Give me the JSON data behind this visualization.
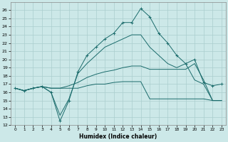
{
  "xlabel": "Humidex (Indice chaleur)",
  "bg_color": "#cce8e8",
  "grid_color": "#aacece",
  "line_color": "#1a6b6b",
  "xlim": [
    -0.5,
    23.5
  ],
  "ylim": [
    12,
    27
  ],
  "xticks": [
    0,
    1,
    2,
    3,
    4,
    5,
    6,
    7,
    8,
    9,
    10,
    11,
    12,
    13,
    14,
    15,
    16,
    17,
    18,
    19,
    20,
    21,
    22,
    23
  ],
  "yticks": [
    12,
    13,
    14,
    15,
    16,
    17,
    18,
    19,
    20,
    21,
    22,
    23,
    24,
    25,
    26
  ],
  "lines": [
    {
      "x": [
        0,
        1,
        2,
        3,
        4,
        5,
        6,
        7,
        8,
        9,
        10,
        11,
        12,
        13,
        14,
        15,
        16,
        17,
        18,
        19,
        20,
        21,
        22,
        23
      ],
      "y": [
        16.5,
        16.2,
        16.5,
        16.7,
        16.0,
        12.5,
        15.0,
        18.5,
        20.5,
        21.5,
        22.5,
        23.2,
        24.5,
        24.5,
        26.2,
        25.2,
        23.2,
        22.0,
        20.5,
        19.5,
        20.0,
        17.2,
        16.8,
        17.0
      ],
      "marker": "+"
    },
    {
      "x": [
        0,
        1,
        2,
        3,
        4,
        5,
        6,
        7,
        8,
        9,
        10,
        11,
        12,
        13,
        14,
        15,
        16,
        17,
        18,
        19,
        20,
        21,
        22,
        23
      ],
      "y": [
        16.5,
        16.2,
        16.5,
        16.7,
        16.5,
        16.5,
        16.8,
        17.2,
        17.8,
        18.2,
        18.5,
        18.7,
        19.0,
        19.2,
        19.2,
        18.8,
        18.8,
        18.8,
        18.8,
        18.8,
        19.5,
        17.5,
        15.0,
        15.0
      ],
      "marker": null
    },
    {
      "x": [
        0,
        1,
        2,
        3,
        4,
        5,
        6,
        7,
        8,
        9,
        10,
        11,
        12,
        13,
        14,
        15,
        16,
        17,
        18,
        19,
        20,
        21,
        22,
        23
      ],
      "y": [
        16.5,
        16.2,
        16.5,
        16.7,
        16.5,
        16.5,
        16.5,
        16.5,
        16.8,
        17.0,
        17.0,
        17.2,
        17.3,
        17.3,
        17.3,
        15.2,
        15.2,
        15.2,
        15.2,
        15.2,
        15.2,
        15.2,
        15.0,
        15.0
      ],
      "marker": null
    },
    {
      "x": [
        0,
        1,
        2,
        3,
        4,
        5,
        6,
        7,
        8,
        9,
        10,
        11,
        12,
        13,
        14,
        15,
        16,
        17,
        18,
        19,
        20,
        21,
        22,
        23
      ],
      "y": [
        16.5,
        16.2,
        16.5,
        16.7,
        16.0,
        13.2,
        15.2,
        18.3,
        19.5,
        20.5,
        21.5,
        22.0,
        22.5,
        23.0,
        23.0,
        21.5,
        20.5,
        19.5,
        19.0,
        19.5,
        17.5,
        17.0,
        15.0,
        15.0
      ],
      "marker": null
    }
  ]
}
